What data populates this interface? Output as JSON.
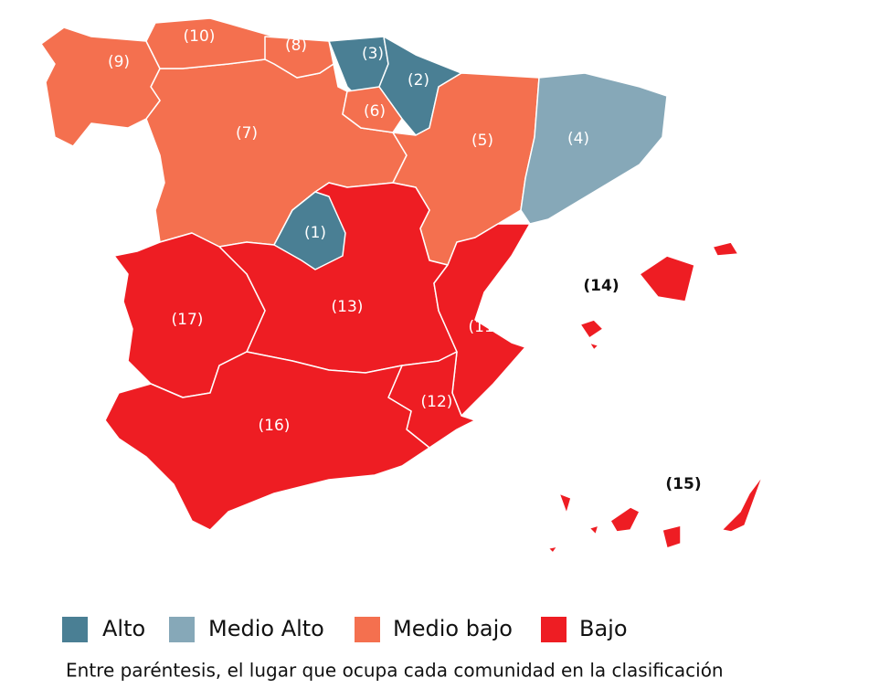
{
  "regions": [
    {
      "label": "(1)",
      "color": "#4a7f94"
    },
    {
      "label": "(2)",
      "color": "#4a7f94"
    },
    {
      "label": "(3)",
      "color": "#4a7f94"
    },
    {
      "label": "(4)",
      "color": "#86a8b8"
    },
    {
      "label": "(5)",
      "color": "#f4704f"
    },
    {
      "label": "(6)",
      "color": "#f4704f"
    },
    {
      "label": "(7)",
      "color": "#f4704f"
    },
    {
      "label": "(8)",
      "color": "#f4704f"
    },
    {
      "label": "(9)",
      "color": "#f4704f"
    },
    {
      "label": "(10)",
      "color": "#f4704f"
    },
    {
      "label": "(11)",
      "color": "#ee1d23"
    },
    {
      "label": "(12)",
      "color": "#ee1d23"
    },
    {
      "label": "(13)",
      "color": "#ee1d23"
    },
    {
      "label": "(14)",
      "color": "#ee1d23"
    },
    {
      "label": "(15)",
      "color": "#ee1d23"
    },
    {
      "label": "(16)",
      "color": "#ee1d23"
    },
    {
      "label": "(17)",
      "color": "#ee1d23"
    }
  ],
  "legend": [
    {
      "label": "Alto",
      "color": "#4a7f94"
    },
    {
      "label": "Medio Alto",
      "color": "#86a8b8"
    },
    {
      "label": "Medio bajo",
      "color": "#f4704f"
    },
    {
      "label": "Bajo",
      "color": "#ee1d23"
    }
  ],
  "note": "Entre paréntesis, el lugar que ocupa cada comunidad en la clasificación"
}
